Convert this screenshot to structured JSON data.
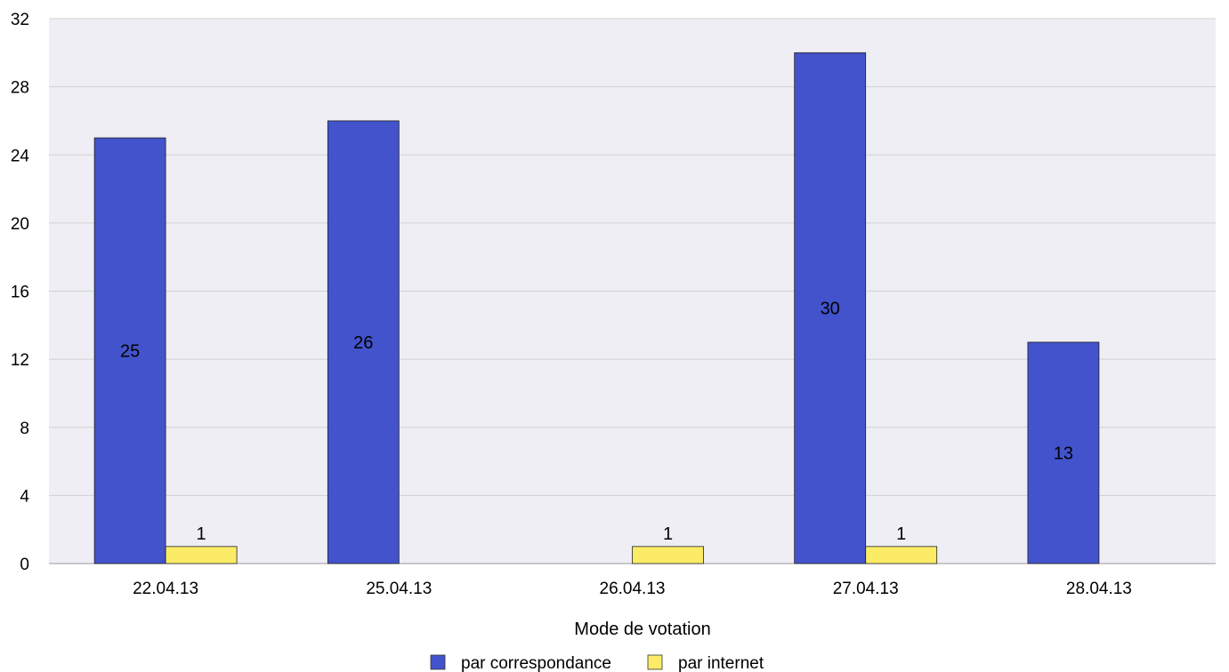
{
  "chart_data": {
    "type": "bar",
    "categories": [
      "22.04.13",
      "25.04.13",
      "26.04.13",
      "27.04.13",
      "28.04.13"
    ],
    "series": [
      {
        "name": "par correspondance",
        "values": [
          25,
          26,
          null,
          30,
          13
        ],
        "color": "#4353CB"
      },
      {
        "name": "par internet",
        "values": [
          1,
          null,
          1,
          1,
          null
        ],
        "color": "#FBEB67"
      }
    ],
    "xlabel": "Mode de votation",
    "ylabel": "",
    "ylim": [
      0,
      32
    ],
    "yticks": [
      0,
      4,
      8,
      12,
      16,
      20,
      24,
      28,
      32
    ],
    "grid": true,
    "legend_position": "bottom-center",
    "data_labels": true,
    "plot_background": "#EFEEF4",
    "grid_color": "#D0D0D8"
  }
}
